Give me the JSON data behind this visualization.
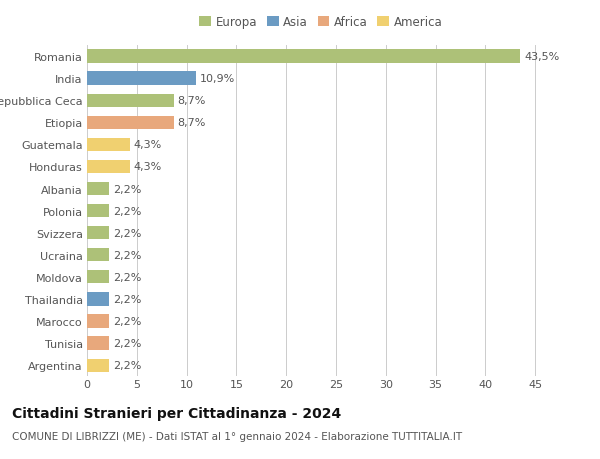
{
  "countries": [
    "Romania",
    "India",
    "Repubblica Ceca",
    "Etiopia",
    "Guatemala",
    "Honduras",
    "Albania",
    "Polonia",
    "Svizzera",
    "Ucraina",
    "Moldova",
    "Thailandia",
    "Marocco",
    "Tunisia",
    "Argentina"
  ],
  "values": [
    43.5,
    10.9,
    8.7,
    8.7,
    4.3,
    4.3,
    2.2,
    2.2,
    2.2,
    2.2,
    2.2,
    2.2,
    2.2,
    2.2,
    2.2
  ],
  "labels": [
    "43,5%",
    "10,9%",
    "8,7%",
    "8,7%",
    "4,3%",
    "4,3%",
    "2,2%",
    "2,2%",
    "2,2%",
    "2,2%",
    "2,2%",
    "2,2%",
    "2,2%",
    "2,2%",
    "2,2%"
  ],
  "continents": [
    "Europa",
    "Asia",
    "Europa",
    "Africa",
    "America",
    "America",
    "Europa",
    "Europa",
    "Europa",
    "Europa",
    "Europa",
    "Asia",
    "Africa",
    "Africa",
    "America"
  ],
  "continent_colors": {
    "Europa": "#adc178",
    "Asia": "#6b9bc3",
    "Africa": "#e8a87c",
    "America": "#f0d070"
  },
  "legend_order": [
    "Europa",
    "Asia",
    "Africa",
    "America"
  ],
  "xlim": [
    0,
    47
  ],
  "xticks": [
    0,
    5,
    10,
    15,
    20,
    25,
    30,
    35,
    40,
    45
  ],
  "title": "Cittadini Stranieri per Cittadinanza - 2024",
  "subtitle": "COMUNE DI LIBRIZZI (ME) - Dati ISTAT al 1° gennaio 2024 - Elaborazione TUTTITALIA.IT",
  "bar_height": 0.6,
  "background_color": "#ffffff",
  "grid_color": "#cccccc",
  "label_color": "#555555",
  "title_fontsize": 10,
  "subtitle_fontsize": 7.5,
  "tick_label_fontsize": 8,
  "bar_label_fontsize": 8,
  "legend_fontsize": 8.5
}
